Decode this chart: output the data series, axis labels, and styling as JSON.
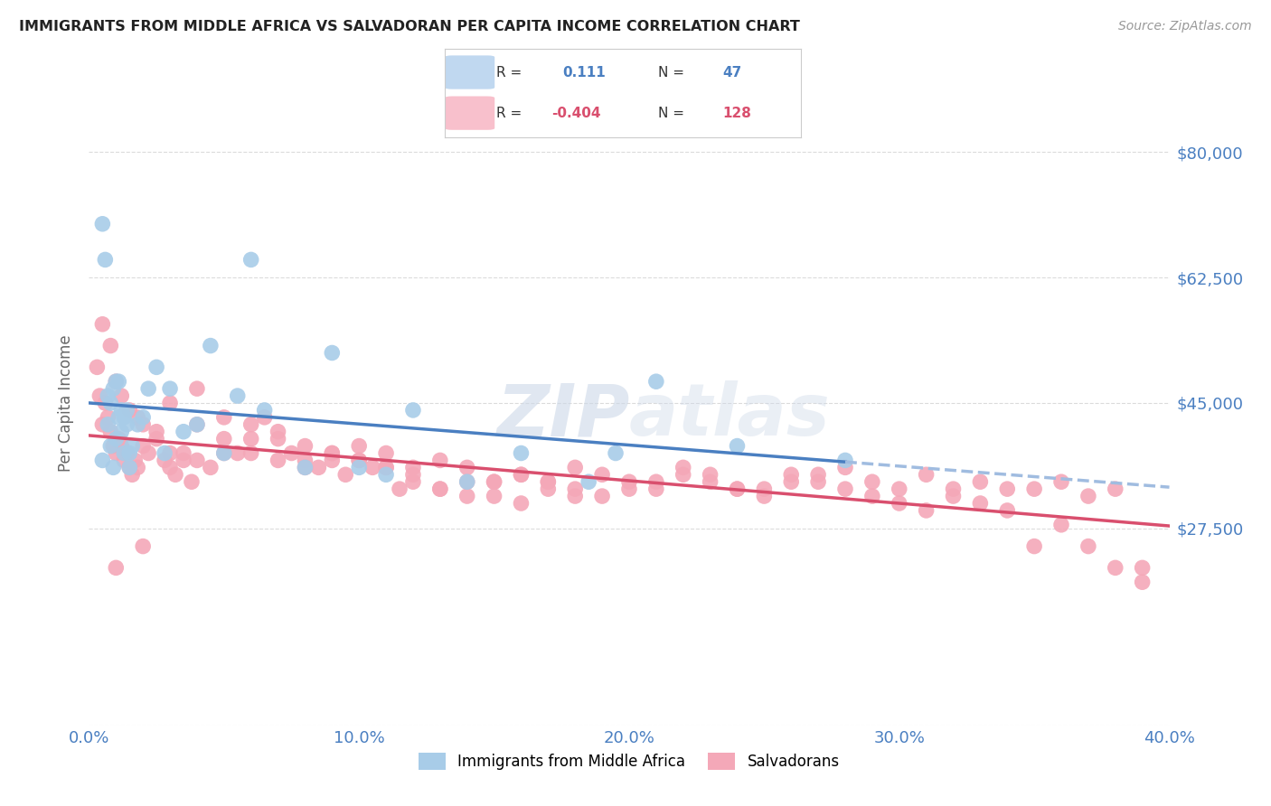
{
  "title": "IMMIGRANTS FROM MIDDLE AFRICA VS SALVADORAN PER CAPITA INCOME CORRELATION CHART",
  "source": "Source: ZipAtlas.com",
  "ylabel": "Per Capita Income",
  "xlim": [
    0.0,
    0.4
  ],
  "ylim": [
    0,
    90000
  ],
  "yticks": [
    0,
    27500,
    45000,
    62500,
    80000
  ],
  "ytick_labels": [
    "",
    "$27,500",
    "$45,000",
    "$62,500",
    "$80,000"
  ],
  "xtick_labels": [
    "0.0%",
    "10.0%",
    "20.0%",
    "30.0%",
    "40.0%"
  ],
  "xticks": [
    0.0,
    0.1,
    0.2,
    0.3,
    0.4
  ],
  "blue_R": "0.111",
  "blue_N": "47",
  "pink_R": "-0.404",
  "pink_N": "128",
  "blue_color": "#a8cce8",
  "pink_color": "#f4a8b8",
  "blue_line_color": "#4a7fc1",
  "pink_line_color": "#d94f6e",
  "dashed_line_color": "#a0bce0",
  "axis_label_color": "#666666",
  "tick_color": "#4a7fc1",
  "grid_color": "#cccccc",
  "watermark_color": "#ccd8e8",
  "legend_box_blue": "#c0d8f0",
  "legend_box_pink": "#f8c0cc",
  "blue_scatter_x": [
    0.005,
    0.007,
    0.008,
    0.009,
    0.01,
    0.011,
    0.012,
    0.013,
    0.014,
    0.015,
    0.016,
    0.018,
    0.02,
    0.022,
    0.025,
    0.028,
    0.03,
    0.035,
    0.04,
    0.045,
    0.05,
    0.055,
    0.06,
    0.065,
    0.08,
    0.09,
    0.1,
    0.11,
    0.12,
    0.14,
    0.16,
    0.185,
    0.195,
    0.21,
    0.24,
    0.28,
    0.005,
    0.006,
    0.007,
    0.008,
    0.009,
    0.01,
    0.011,
    0.012,
    0.013,
    0.014,
    0.015
  ],
  "blue_scatter_y": [
    37000,
    42000,
    39000,
    36000,
    40000,
    43000,
    41000,
    38000,
    44000,
    36000,
    39000,
    42000,
    43000,
    47000,
    50000,
    38000,
    47000,
    41000,
    42000,
    53000,
    38000,
    46000,
    65000,
    44000,
    36000,
    52000,
    36000,
    35000,
    44000,
    34000,
    38000,
    34000,
    38000,
    48000,
    39000,
    37000,
    70000,
    65000,
    46000,
    45000,
    47000,
    48000,
    48000,
    44000,
    43000,
    42000,
    38000
  ],
  "pink_scatter_x": [
    0.003,
    0.004,
    0.005,
    0.006,
    0.007,
    0.008,
    0.009,
    0.01,
    0.011,
    0.012,
    0.013,
    0.014,
    0.015,
    0.016,
    0.017,
    0.018,
    0.02,
    0.022,
    0.025,
    0.028,
    0.03,
    0.032,
    0.035,
    0.038,
    0.04,
    0.045,
    0.05,
    0.055,
    0.06,
    0.065,
    0.07,
    0.075,
    0.08,
    0.085,
    0.09,
    0.095,
    0.1,
    0.105,
    0.11,
    0.115,
    0.12,
    0.13,
    0.14,
    0.15,
    0.16,
    0.17,
    0.18,
    0.19,
    0.2,
    0.21,
    0.22,
    0.23,
    0.24,
    0.25,
    0.26,
    0.27,
    0.28,
    0.29,
    0.3,
    0.31,
    0.32,
    0.33,
    0.34,
    0.35,
    0.36,
    0.37,
    0.38,
    0.39,
    0.005,
    0.008,
    0.01,
    0.012,
    0.015,
    0.018,
    0.02,
    0.025,
    0.03,
    0.035,
    0.04,
    0.05,
    0.06,
    0.07,
    0.08,
    0.09,
    0.1,
    0.11,
    0.12,
    0.13,
    0.14,
    0.15,
    0.16,
    0.17,
    0.18,
    0.19,
    0.2,
    0.21,
    0.22,
    0.23,
    0.24,
    0.25,
    0.26,
    0.27,
    0.28,
    0.29,
    0.3,
    0.31,
    0.32,
    0.33,
    0.34,
    0.35,
    0.36,
    0.37,
    0.38,
    0.39,
    0.01,
    0.02,
    0.03,
    0.04,
    0.05,
    0.06,
    0.07,
    0.08,
    0.09,
    0.1,
    0.11,
    0.12,
    0.13,
    0.14,
    0.15,
    0.16,
    0.17,
    0.18
  ],
  "pink_scatter_y": [
    50000,
    46000,
    42000,
    45000,
    43000,
    41000,
    39000,
    38000,
    40000,
    39000,
    37000,
    38000,
    36000,
    35000,
    37000,
    36000,
    39000,
    38000,
    41000,
    37000,
    36000,
    35000,
    38000,
    34000,
    37000,
    36000,
    38000,
    38000,
    40000,
    43000,
    41000,
    38000,
    37000,
    36000,
    37000,
    35000,
    39000,
    36000,
    38000,
    33000,
    36000,
    37000,
    36000,
    34000,
    35000,
    34000,
    36000,
    35000,
    33000,
    34000,
    36000,
    35000,
    33000,
    33000,
    34000,
    35000,
    36000,
    34000,
    33000,
    35000,
    33000,
    34000,
    33000,
    33000,
    34000,
    32000,
    33000,
    22000,
    56000,
    53000,
    48000,
    46000,
    44000,
    43000,
    42000,
    40000,
    38000,
    37000,
    42000,
    40000,
    38000,
    37000,
    36000,
    38000,
    37000,
    36000,
    35000,
    33000,
    32000,
    34000,
    35000,
    34000,
    33000,
    32000,
    34000,
    33000,
    35000,
    34000,
    33000,
    32000,
    35000,
    34000,
    33000,
    32000,
    31000,
    30000,
    32000,
    31000,
    30000,
    25000,
    28000,
    25000,
    22000,
    20000,
    22000,
    25000,
    45000,
    47000,
    43000,
    42000,
    40000,
    39000,
    38000,
    37000,
    36000,
    34000,
    33000,
    34000,
    32000,
    31000,
    33000,
    32000,
    31000,
    30000,
    29000,
    28000,
    30000,
    29000
  ]
}
